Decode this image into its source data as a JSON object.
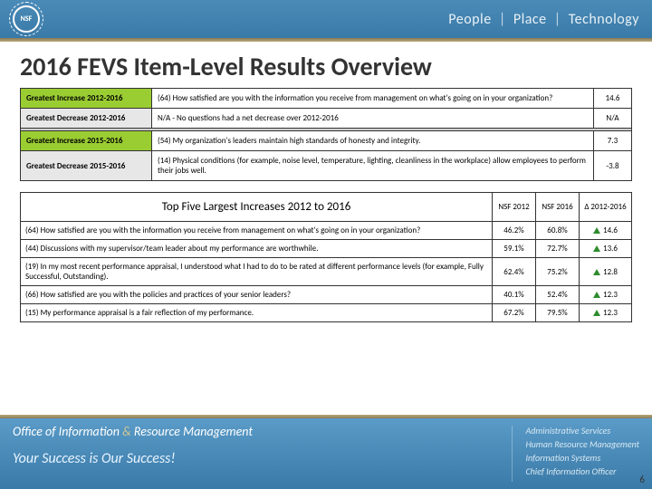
{
  "header": {
    "logo_text": "NSF",
    "tagline_parts": [
      "People",
      "Place",
      "Technology"
    ]
  },
  "title": "2016 FEVS Item-Level Results Overview",
  "summary_table": {
    "rows": [
      {
        "label": "Greatest Increase 2012-2016",
        "text": "(64) How satisfied are you with the information you receive from management on what's going on in your organization?",
        "value": "14.6",
        "bg": "green"
      },
      {
        "label": "Greatest Decrease 2012-2016",
        "text": "N/A - No questions had a net decrease over 2012-2016",
        "value": "N/A",
        "bg": "grey"
      },
      {
        "label": "Greatest Increase 2015-2016",
        "text": "(54) My organization's leaders maintain high standards of honesty and integrity.",
        "value": "7.3",
        "bg": "green"
      },
      {
        "label": "Greatest Decrease 2015-2016",
        "text": "(14) Physical conditions (for example, noise level, temperature, lighting, cleanliness in the workplace) allow employees to perform their jobs well.",
        "value": "-3.8",
        "bg": "grey"
      }
    ]
  },
  "detail_table": {
    "title": "Top Five Largest Increases 2012 to 2016",
    "col_headers": [
      "NSF 2012",
      "NSF 2016",
      "Δ 2012-2016"
    ],
    "rows": [
      {
        "q": "(64) How satisfied are you with the information you receive from management on what's going on in your organization?",
        "v12": "46.2%",
        "v16": "60.8%",
        "delta": "14.6"
      },
      {
        "q": "(44) Discussions with my supervisor/team leader about my performance are worthwhile.",
        "v12": "59.1%",
        "v16": "72.7%",
        "delta": "13.6"
      },
      {
        "q": "(19) In my most recent performance appraisal, I understood what I had to do to be rated at different performance levels (for example, Fully Successful, Outstanding).",
        "v12": "62.4%",
        "v16": "75.2%",
        "delta": "12.8"
      },
      {
        "q": "(66) How satisfied are you with the policies and practices of your senior leaders?",
        "v12": "40.1%",
        "v16": "52.4%",
        "delta": "12.3"
      },
      {
        "q": "(15) My performance appraisal is a fair reflection of my performance.",
        "v12": "67.2%",
        "v16": "79.5%",
        "delta": "12.3"
      }
    ]
  },
  "footer": {
    "office_pre": "Office of Information ",
    "office_amp": "&",
    "office_post": " Resource Management",
    "tagline": "Your Success is Our Success!",
    "right_lines": [
      "Administrative Services",
      "Human Resource Management",
      "Information Systems",
      "Chief Information Officer"
    ]
  },
  "page_number": "6",
  "colors": {
    "header_grad_top": "#4a8bb8",
    "header_grad_bot": "#3a7aa8",
    "gold_rule": "#b8a878",
    "row_green": "#9acd32",
    "row_grey": "#e7e7e7",
    "arrow_green": "#2e8b2e"
  }
}
